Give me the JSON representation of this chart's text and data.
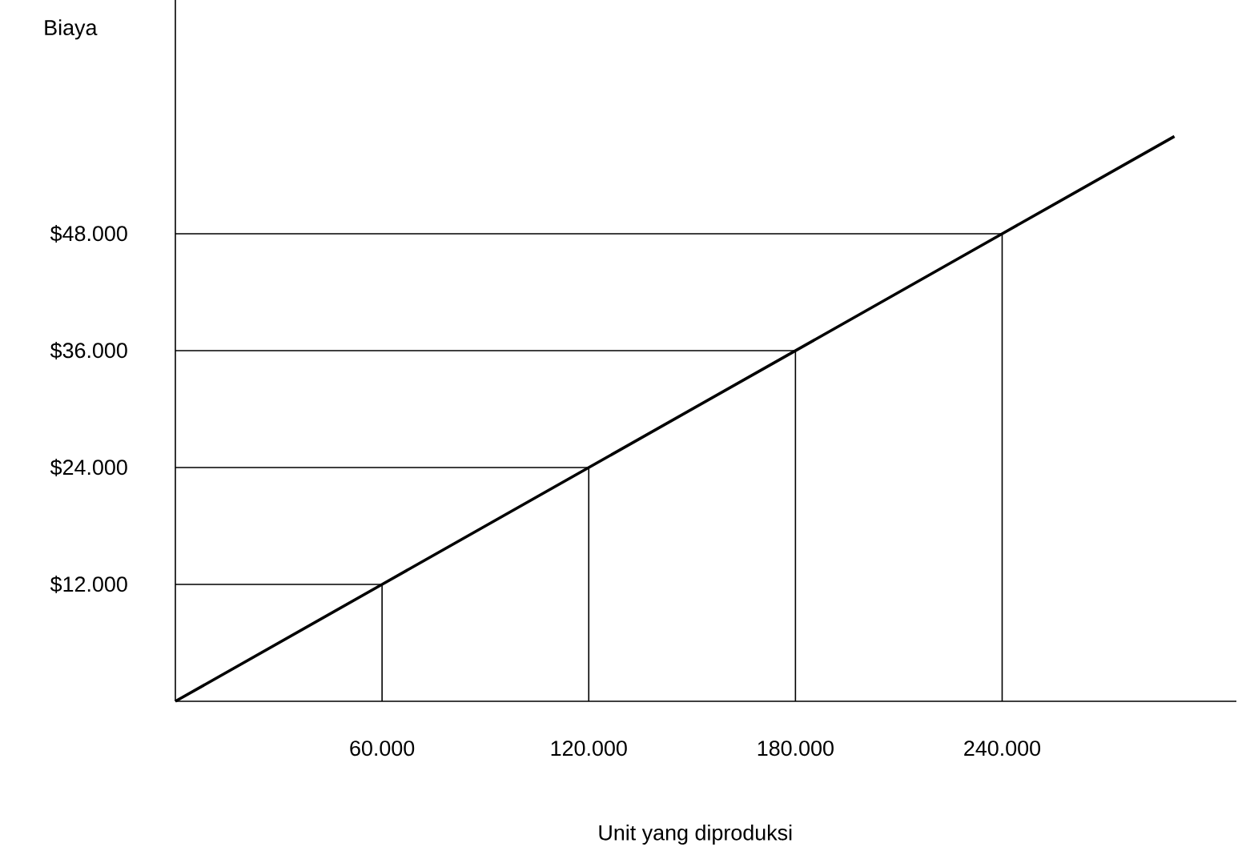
{
  "chart_data": {
    "type": "line",
    "xlabel": "Unit yang diproduksi",
    "ylabel": "Biaya",
    "series": [
      {
        "color": "#000000",
        "x": [
          0,
          60000,
          120000,
          180000,
          240000,
          290000
        ],
        "values": [
          0,
          12000,
          24000,
          36000,
          48000,
          58000
        ]
      },
      {
        "color": "#000000",
        "x": [
          0,
          60000,
          60000
        ],
        "values": [
          12000,
          12000,
          0
        ]
      },
      {
        "color": "#000000",
        "x": [
          0,
          120000,
          120000
        ],
        "values": [
          24000,
          24000,
          0
        ]
      },
      {
        "color": "#000000",
        "x": [
          0,
          180000,
          180000
        ],
        "values": [
          36000,
          36000,
          0
        ]
      },
      {
        "color": "#000000",
        "x": [
          0,
          240000,
          240000
        ],
        "values": [
          48000,
          48000,
          0
        ]
      }
    ],
    "marker": "none",
    "line_style": "solid",
    "xlim": [
      0,
      308000
    ],
    "ylim": [
      0,
      72000
    ],
    "xticks": [
      {
        "value": 60000,
        "label": "60.000"
      },
      {
        "value": 120000,
        "label": "120.000"
      },
      {
        "value": 180000,
        "label": "180.000"
      },
      {
        "value": 240000,
        "label": "240.000"
      }
    ],
    "yticks": [
      {
        "value": 12000,
        "label": "$12.000"
      },
      {
        "value": 24000,
        "label": "$24.000"
      },
      {
        "value": 36000,
        "label": "$36.000"
      },
      {
        "value": 48000,
        "label": "$48.000"
      }
    ]
  }
}
